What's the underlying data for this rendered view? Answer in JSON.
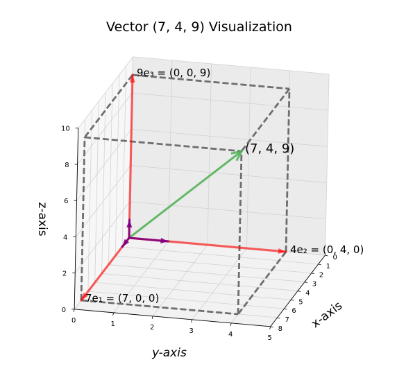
{
  "chart_data": {
    "type": "3d-vector",
    "title": "Vector (7, 4, 9) Visualization",
    "xlabel": "x-axis",
    "ylabel": "y-axis",
    "zlabel": "z-axis",
    "xlim": [
      0,
      8
    ],
    "ylim": [
      0,
      5
    ],
    "zlim": [
      0,
      10
    ],
    "xticks": [
      "0",
      "1",
      "2",
      "3",
      "4",
      "5",
      "6",
      "7",
      "8"
    ],
    "yticks": [
      "0",
      "1",
      "2",
      "3",
      "4",
      "5"
    ],
    "zticks": [
      "0",
      "2",
      "4",
      "6",
      "8",
      "10"
    ],
    "grid": true,
    "vector": {
      "label": "(7, 4, 9)",
      "x": 7,
      "y": 4,
      "z": 9,
      "color": "#4caf50"
    },
    "components": [
      {
        "label": "7e₁ = (7, 0, 0)",
        "x": 7,
        "y": 0,
        "z": 0,
        "color": "#ff0000"
      },
      {
        "label": "4e₂ = (0, 4, 0)",
        "x": 0,
        "y": 4,
        "z": 0,
        "color": "#ff0000"
      },
      {
        "label": "9e₃ = (0, 0, 9)",
        "x": 0,
        "y": 0,
        "z": 9,
        "color": "#ff0000"
      }
    ],
    "basis_color": "#800080",
    "box_color": "#6e6e6e"
  }
}
